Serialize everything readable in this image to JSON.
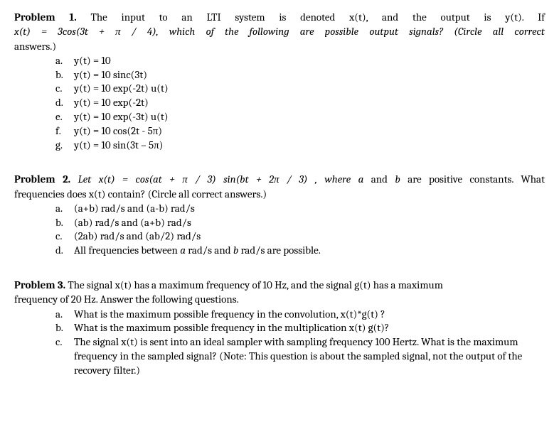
{
  "problem1": {
    "title": "Problem 1.",
    "line1_after_title": " The input to an LTI system is denoted x(t), and the output is y(t).   If",
    "line2": "x(t) = 3cos(3t + π / 4), which of the following are possible output signals?   (Circle all correct",
    "line3": "answers.)",
    "options": [
      {
        "letter": "a.",
        "text": "y(t) = 10"
      },
      {
        "letter": "b.",
        "text": "y(t) = 10 sinc(3t)"
      },
      {
        "letter": "c.",
        "text": "y(t) = 10 exp(-2t) u(t)"
      },
      {
        "letter": "d.",
        "text": "y(t) = 10 exp(-2t)"
      },
      {
        "letter": "e.",
        "text": "y(t) = 10 exp(-3t) u(t)"
      },
      {
        "letter": "f.",
        "text": "y(t) = 10 cos(2t - 5π)"
      },
      {
        "letter": "g.",
        "text": "y(t) = 10 sin(3t – 5π)"
      }
    ]
  },
  "problem2": {
    "title": "Problem 2.",
    "line1_part1": " Let  x(t) = cos(at + π / 3) sin(bt + 2π / 3) , where ",
    "line1_a": "a",
    "line1_part2": " and ",
    "line1_b": "b",
    "line1_part3": " are positive constants.   What",
    "line2": "frequencies does x(t) contain?  (Circle all correct answers.)",
    "options": [
      {
        "letter": "a.",
        "text": "(a+b) rad/s and (a-b) rad/s"
      },
      {
        "letter": "b.",
        "text": "(ab) rad/s and (a+b) rad/s"
      },
      {
        "letter": "c.",
        "text": "(2ab) rad/s and (ab/2) rad/s"
      },
      {
        "letter": "d.",
        "text_pre": "All frequencies between ",
        "text_a": "a",
        "text_mid": " rad/s and ",
        "text_b": "b",
        "text_post": " rad/s are possible."
      }
    ]
  },
  "problem3": {
    "title": "Problem 3.",
    "line1_after_title": " The signal x(t) has a maximum frequency of 10 Hz, and the signal g(t) has a maximum",
    "line2": "frequency of 20 Hz.  Answer the following questions.",
    "options": [
      {
        "letter": "a.",
        "text": "What is the maximum possible frequency in the convolution, x(t)*g(t) ?"
      },
      {
        "letter": "b.",
        "text": "What is the maximum possible frequency in the multiplication x(t) g(t)?"
      },
      {
        "letter": "c.",
        "text": "The signal x(t) is sent into an ideal sampler with sampling frequency 100 Hertz.  What is the maximum frequency in the sampled signal?  (Note: This question is about the sampled signal, not the output of the recovery filter.)"
      }
    ]
  }
}
